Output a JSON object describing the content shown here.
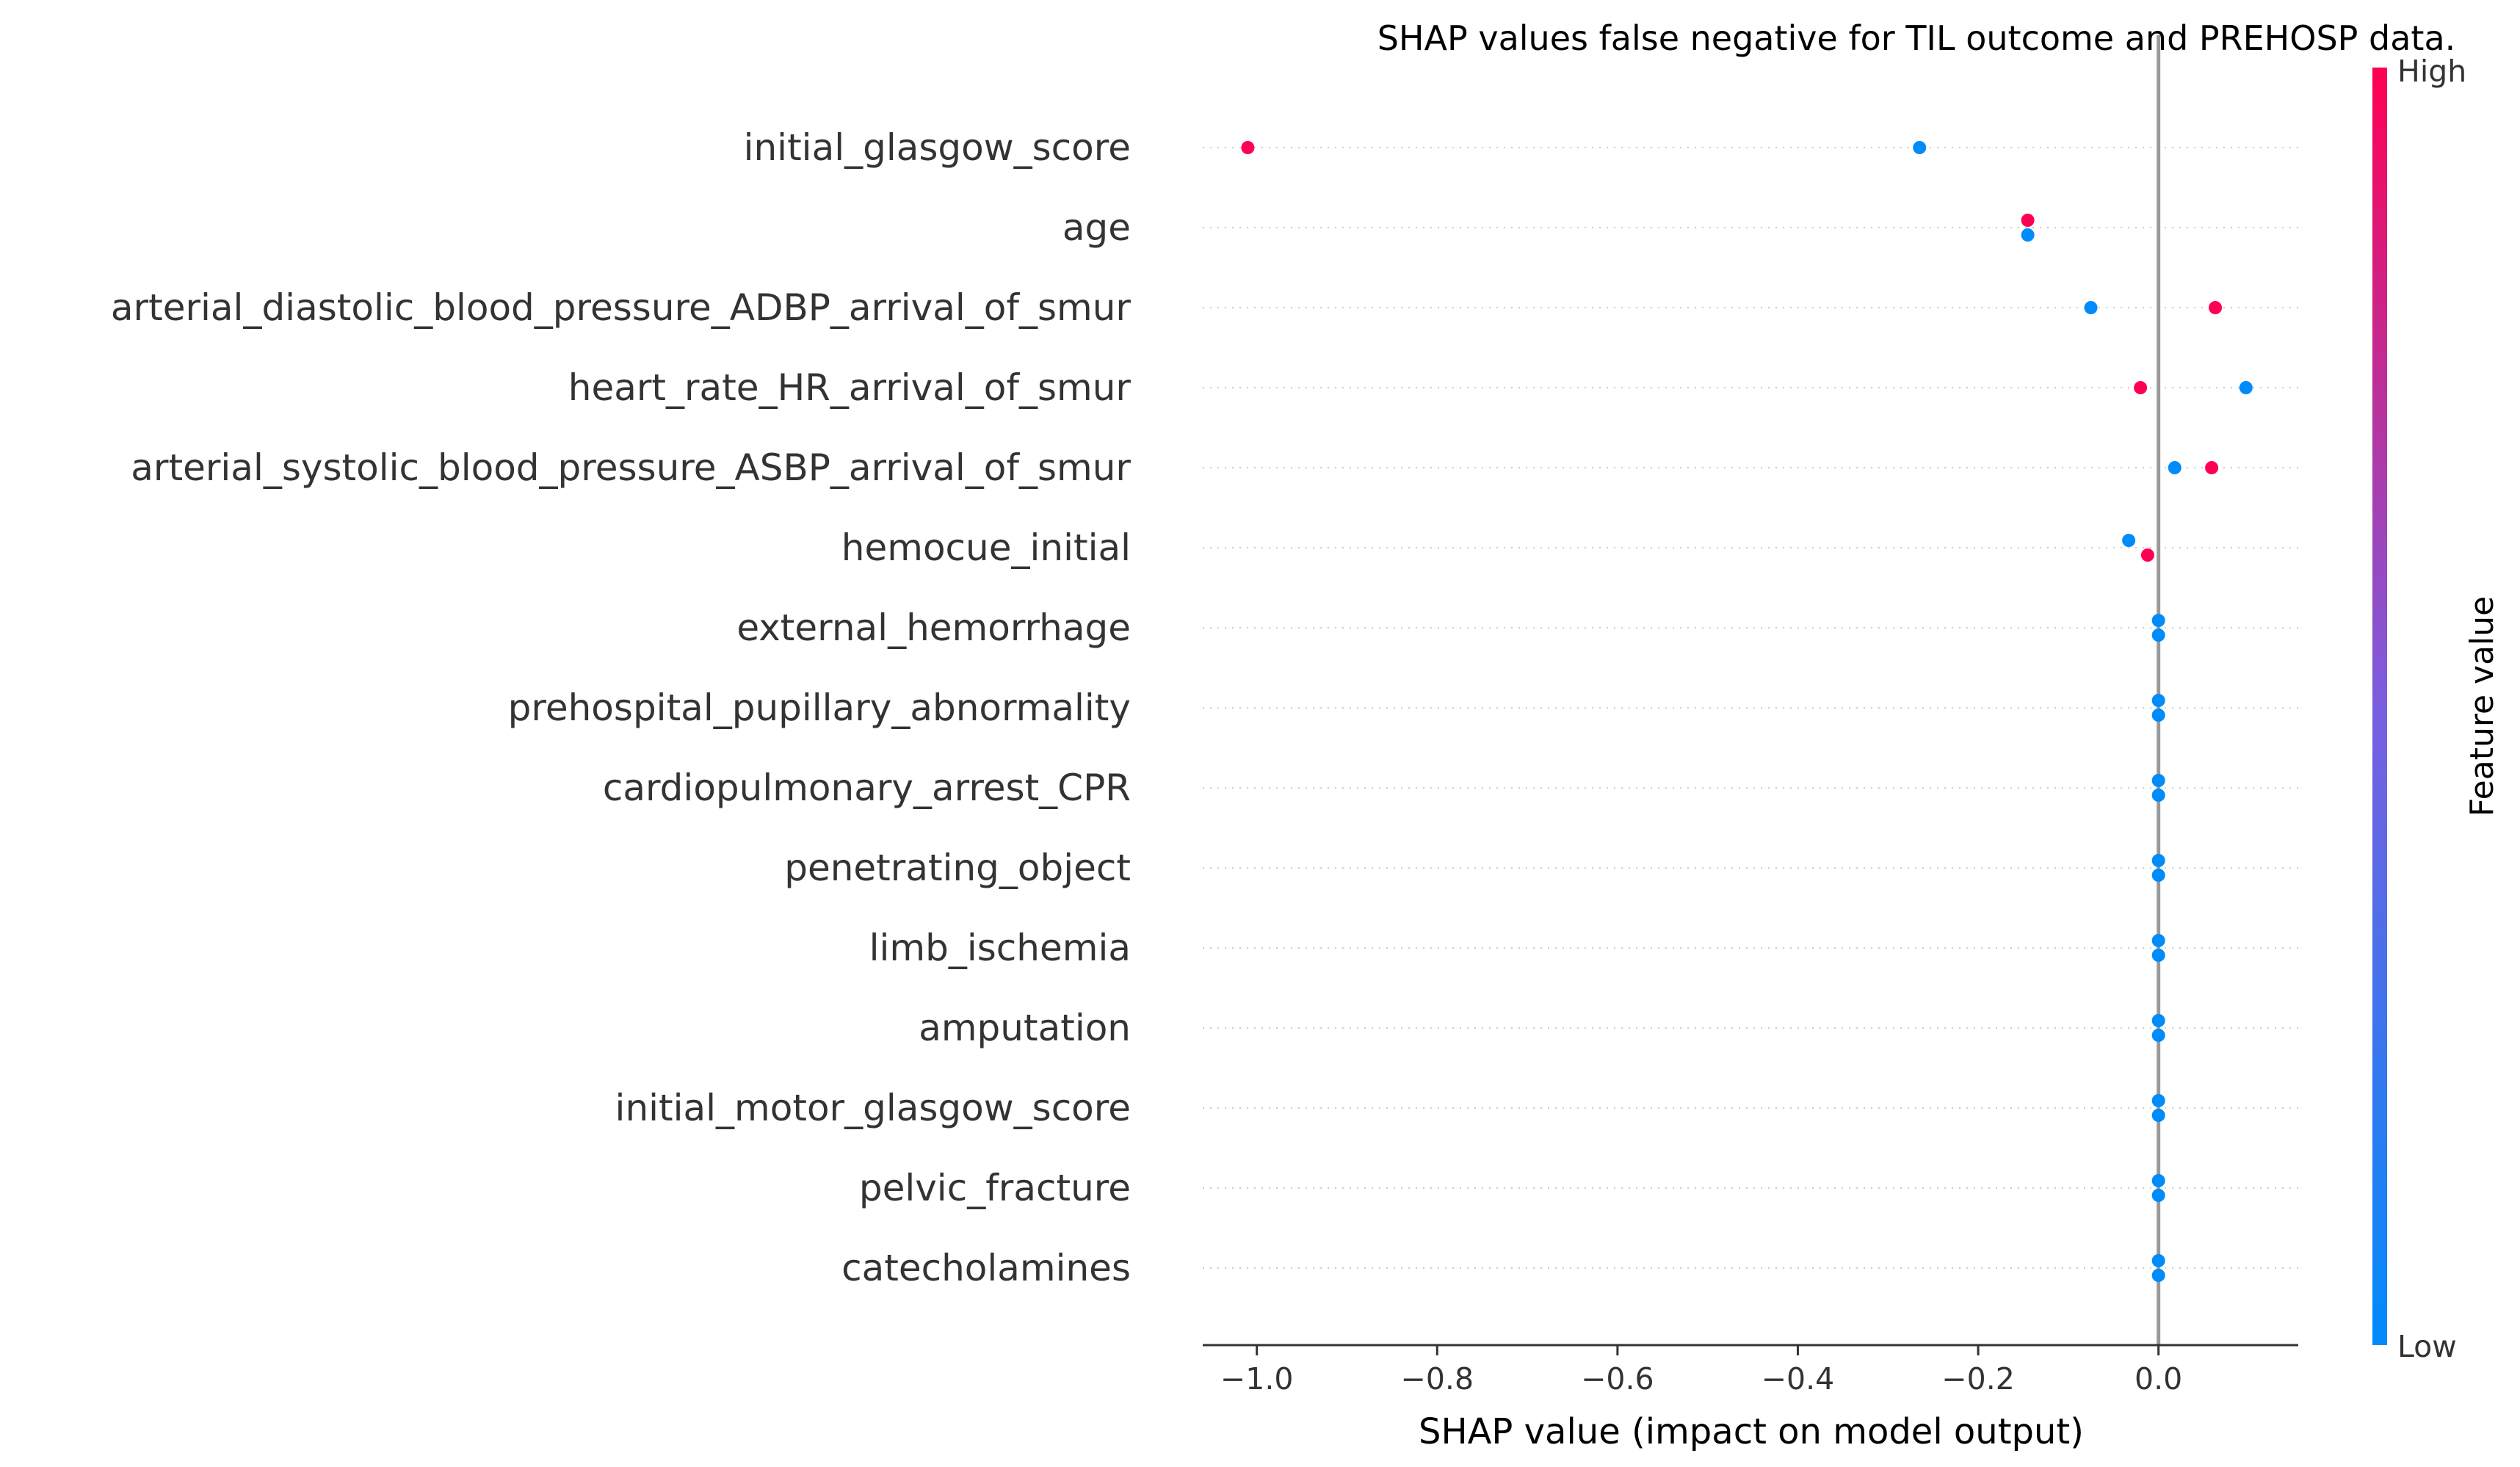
{
  "chart_data": {
    "type": "scatter",
    "title": "SHAP values false negative for TIL outcome and PREHOSP data.",
    "xlabel": "SHAP value (impact on model output)",
    "xlim": [
      -1.06,
      0.155
    ],
    "xticks": [
      -1.0,
      -0.8,
      -0.6,
      -0.4,
      -0.2,
      0.0
    ],
    "xtick_labels": [
      "−1.0",
      "−0.8",
      "−0.6",
      "−0.4",
      "−0.2",
      "0.0"
    ],
    "colorbar": {
      "title": "Feature value",
      "high_label": "High",
      "low_label": "Low",
      "high_color": "#ff0052",
      "low_color": "#008bfb"
    },
    "features": [
      {
        "name": "initial_glasgow_score",
        "points": [
          {
            "x": -1.01,
            "level": "high"
          },
          {
            "x": -0.265,
            "level": "low"
          }
        ]
      },
      {
        "name": "age",
        "points": [
          {
            "x": -0.145,
            "level": "high"
          },
          {
            "x": -0.145,
            "level": "low"
          }
        ]
      },
      {
        "name": "arterial_diastolic_blood_pressure_ADBP_arrival_of_smur",
        "points": [
          {
            "x": -0.075,
            "level": "low"
          },
          {
            "x": 0.063,
            "level": "high"
          }
        ]
      },
      {
        "name": "heart_rate_HR_arrival_of_smur",
        "points": [
          {
            "x": -0.02,
            "level": "high"
          },
          {
            "x": 0.097,
            "level": "low"
          }
        ]
      },
      {
        "name": "arterial_systolic_blood_pressure_ASBP_arrival_of_smur",
        "points": [
          {
            "x": 0.018,
            "level": "low"
          },
          {
            "x": 0.059,
            "level": "high"
          }
        ]
      },
      {
        "name": "hemocue_initial",
        "points": [
          {
            "x": -0.033,
            "level": "low"
          },
          {
            "x": -0.012,
            "level": "high"
          }
        ]
      },
      {
        "name": "external_hemorrhage",
        "points": [
          {
            "x": 0.0,
            "level": "low"
          },
          {
            "x": 0.0,
            "level": "low"
          }
        ]
      },
      {
        "name": "prehospital_pupillary_abnormality",
        "points": [
          {
            "x": 0.0,
            "level": "low"
          },
          {
            "x": 0.0,
            "level": "low"
          }
        ]
      },
      {
        "name": "cardiopulmonary_arrest_CPR",
        "points": [
          {
            "x": 0.0,
            "level": "low"
          },
          {
            "x": 0.0,
            "level": "low"
          }
        ]
      },
      {
        "name": "penetrating_object",
        "points": [
          {
            "x": 0.0,
            "level": "low"
          },
          {
            "x": 0.0,
            "level": "low"
          }
        ]
      },
      {
        "name": "limb_ischemia",
        "points": [
          {
            "x": 0.0,
            "level": "low"
          },
          {
            "x": 0.0,
            "level": "low"
          }
        ]
      },
      {
        "name": "amputation",
        "points": [
          {
            "x": 0.0,
            "level": "low"
          },
          {
            "x": 0.0,
            "level": "low"
          }
        ]
      },
      {
        "name": "initial_motor_glasgow_score",
        "points": [
          {
            "x": 0.0,
            "level": "low"
          },
          {
            "x": 0.0,
            "level": "low"
          }
        ]
      },
      {
        "name": "pelvic_fracture",
        "points": [
          {
            "x": 0.0,
            "level": "low"
          },
          {
            "x": 0.0,
            "level": "low"
          }
        ]
      },
      {
        "name": "catecholamines",
        "points": [
          {
            "x": 0.0,
            "level": "low"
          },
          {
            "x": 0.0,
            "level": "low"
          }
        ]
      }
    ]
  }
}
